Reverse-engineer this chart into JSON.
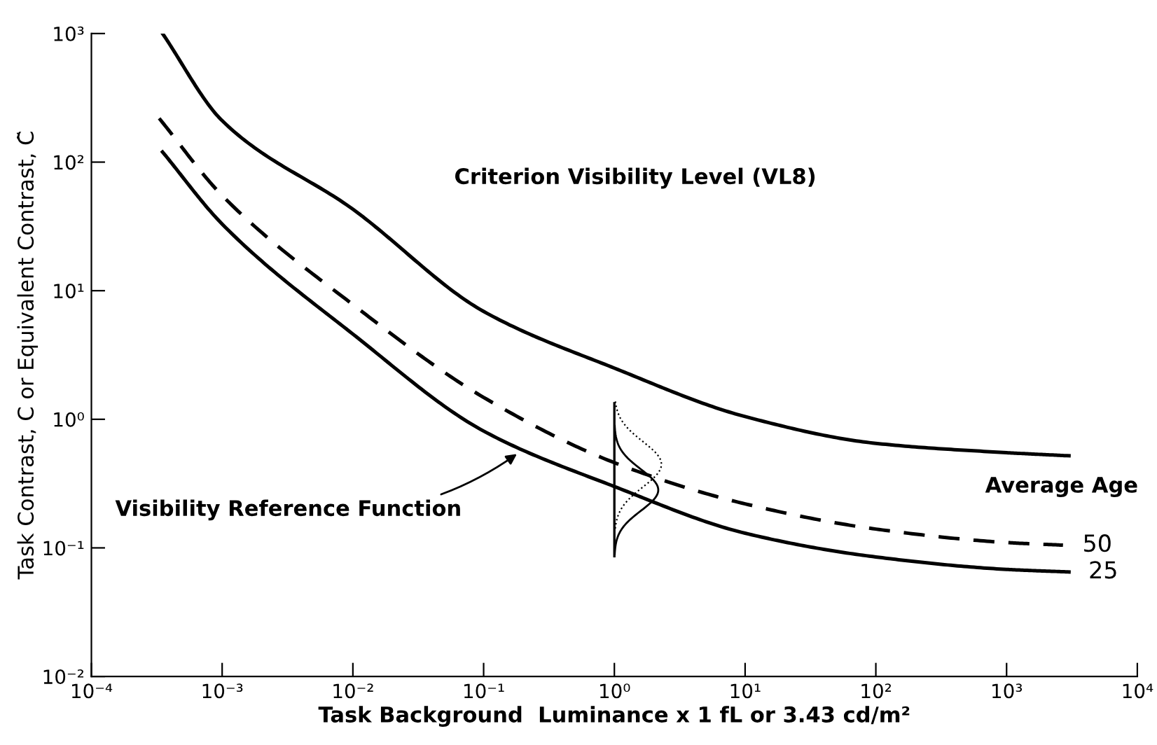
{
  "chart_data": {
    "type": "line",
    "xlabel": "Task Background  Luminance x 1 fL or 3.43 cd/m²",
    "ylabel": "Task Contrast, C or Equivalent Contrast, C̃",
    "legend_title": "Average Age",
    "log": "xy",
    "xlim": [
      0.0001,
      10000
    ],
    "ylim": [
      0.01,
      1000
    ],
    "xticks": [
      {
        "value": 0.0001,
        "label": "10⁻⁴"
      },
      {
        "value": 0.001,
        "label": "10⁻³"
      },
      {
        "value": 0.01,
        "label": "10⁻²"
      },
      {
        "value": 0.1,
        "label": "10⁻¹"
      },
      {
        "value": 1,
        "label": "10⁰"
      },
      {
        "value": 10,
        "label": "10¹"
      },
      {
        "value": 100,
        "label": "10²"
      },
      {
        "value": 1000,
        "label": "10³"
      },
      {
        "value": 10000,
        "label": "10⁴"
      }
    ],
    "yticks": [
      {
        "value": 0.01,
        "label": "10⁻²"
      },
      {
        "value": 0.1,
        "label": "10⁻¹"
      },
      {
        "value": 1,
        "label": "10⁰"
      },
      {
        "value": 10,
        "label": "10¹"
      },
      {
        "value": 100,
        "label": "10²"
      },
      {
        "value": 1000,
        "label": "10³"
      }
    ],
    "grid": false,
    "legend": false,
    "marker": "none",
    "series": [
      {
        "color": "#000000",
        "line_style": "solid",
        "x": [
          0.00035,
          0.001,
          0.01,
          0.1,
          1,
          10,
          100,
          1000,
          3000
        ],
        "values": [
          1000,
          210,
          43,
          6.9,
          2.5,
          1.05,
          0.65,
          0.55,
          0.52
        ]
      },
      {
        "name": "50",
        "color": "#000000",
        "line_style": "dashed",
        "x": [
          0.00033,
          0.001,
          0.01,
          0.1,
          1,
          10,
          100,
          1000,
          2700
        ],
        "values": [
          219,
          55,
          7.8,
          1.48,
          0.46,
          0.22,
          0.14,
          0.11,
          0.105
        ]
      },
      {
        "name": "25",
        "color": "#000000",
        "line_style": "solid",
        "x": [
          0.00035,
          0.001,
          0.01,
          0.1,
          1,
          10,
          100,
          1000,
          3000
        ],
        "values": [
          120,
          33,
          4.6,
          0.81,
          0.3,
          0.13,
          0.085,
          0.068,
          0.065
        ]
      }
    ],
    "annotations": [
      "Criterion Visibility Level (VL8)",
      {
        "text": "Visibility Reference Function",
        "x": 0.19,
        "y": 0.56
      }
    ]
  }
}
